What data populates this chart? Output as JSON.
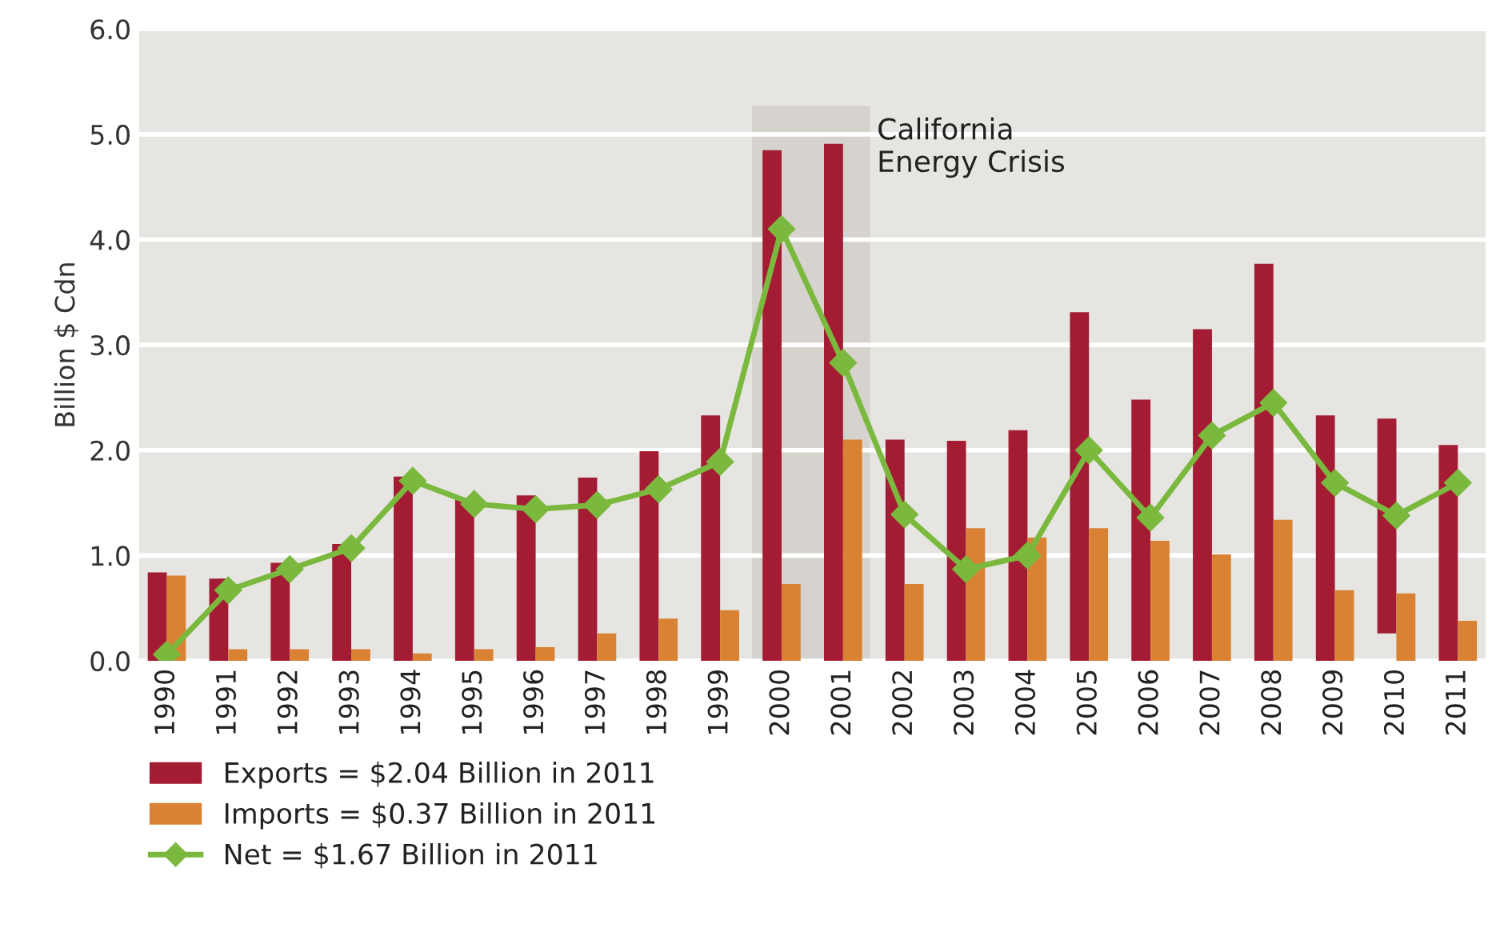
{
  "chart_data": {
    "type": "bar",
    "ylabel": "Billion $ Cdn",
    "categories": [
      "1990",
      "1991",
      "1992",
      "1993",
      "1994",
      "1995",
      "1996",
      "1997",
      "1998",
      "1999",
      "2000",
      "2001",
      "2002",
      "2003",
      "2004",
      "2005",
      "2006",
      "2007",
      "2008",
      "2009",
      "2010",
      "2011"
    ],
    "series": [
      {
        "name": "Exports = $2.04 Billion in 2011",
        "color": "#a41c34",
        "values": [
          0.84,
          0.78,
          0.93,
          1.11,
          1.75,
          1.53,
          1.57,
          1.74,
          1.99,
          2.33,
          4.85,
          4.91,
          2.1,
          2.09,
          2.19,
          3.31,
          2.48,
          3.15,
          3.77,
          2.33,
          2.04,
          2.05
        ],
        "base": [
          0,
          0,
          0,
          0,
          0,
          0,
          0,
          0,
          0,
          0,
          0,
          0,
          0,
          0,
          0,
          0,
          0,
          0,
          0,
          0,
          0.26,
          0
        ]
      },
      {
        "name": "Imports = $0.37 Billion in 2011",
        "color": "#d98233",
        "values": [
          0.81,
          0.11,
          0.11,
          0.11,
          0.07,
          0.11,
          0.13,
          0.26,
          0.4,
          0.48,
          0.73,
          2.1,
          0.73,
          1.26,
          1.17,
          1.26,
          1.14,
          1.01,
          1.34,
          0.67,
          0.64,
          0.38
        ]
      },
      {
        "name": "Net = $1.67 Billion in 2011",
        "color": "#7ab93d",
        "type": "line",
        "marker": "diamond",
        "values": [
          0.06,
          0.67,
          0.87,
          1.07,
          1.71,
          1.49,
          1.44,
          1.48,
          1.63,
          1.89,
          4.1,
          2.83,
          1.39,
          0.87,
          1.0,
          2.0,
          1.36,
          2.14,
          2.45,
          1.69,
          1.38,
          1.69
        ]
      }
    ],
    "ylim": [
      0,
      6
    ],
    "yticks": [
      {
        "value": 0,
        "label": "0.0"
      },
      {
        "value": 1,
        "label": "1.0"
      },
      {
        "value": 2,
        "label": "2.0"
      },
      {
        "value": 3,
        "label": "3.0"
      },
      {
        "value": 4,
        "label": "4.0"
      },
      {
        "value": 5,
        "label": "5.0"
      },
      {
        "value": 6,
        "label": "6.0"
      }
    ],
    "bands": [
      {
        "axis": "x",
        "from": "2000",
        "to": "2001",
        "label": "California\nEnergy Crisis",
        "color": "#d6d3ce"
      }
    ],
    "grid": "y",
    "legend": "bottom left"
  }
}
